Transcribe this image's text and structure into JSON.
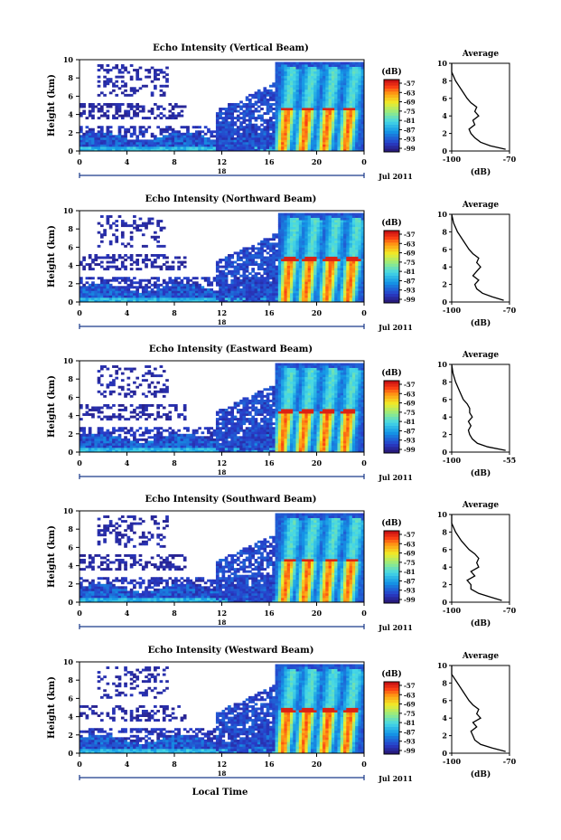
{
  "figure": {
    "xlabel": "Local Time",
    "date_label": "Jul 2011",
    "day_label": "18"
  },
  "chart_data": [
    {
      "type": "heatmap",
      "title": "Echo Intensity (Vertical Beam)",
      "ylabel": "Height (km)",
      "xlabel": "Local Time",
      "x_ticks": [
        "0",
        "4",
        "8",
        "12",
        "16",
        "20",
        "0"
      ],
      "x_range": [
        0,
        24
      ],
      "y_ticks": [
        "0",
        "2",
        "4",
        "6",
        "8",
        "10"
      ],
      "y_range": [
        0,
        10
      ],
      "colorbar_label": "(dB)",
      "colorbar_ticks": [
        "-57",
        "-63",
        "-69",
        "-75",
        "-81",
        "-87",
        "-93",
        "-99"
      ],
      "bright_band_height": 4.6,
      "rain_onset_hour": 16.5,
      "average": {
        "title": "Average",
        "xlabel": "(dB)",
        "x_range": [
          -100,
          -70
        ],
        "x_ticks": [
          "-100",
          "-70"
        ],
        "y_ticks": [
          "0",
          "2",
          "4",
          "6",
          "8",
          "10"
        ],
        "heights": [
          0.2,
          0.6,
          1.0,
          1.5,
          2.0,
          2.5,
          3.0,
          3.5,
          4.0,
          4.5,
          5.0,
          5.5,
          6.0,
          7.0,
          8.0,
          9.0,
          10.0
        ],
        "values": [
          -72,
          -80,
          -85,
          -88,
          -90,
          -91,
          -88,
          -89,
          -86,
          -88,
          -87,
          -90,
          -92,
          -95,
          -98,
          -100,
          -102
        ]
      }
    },
    {
      "type": "heatmap",
      "title": "Echo Intensity (Northward Beam)",
      "ylabel": "Height (km)",
      "xlabel": "Local Time",
      "x_ticks": [
        "0",
        "4",
        "8",
        "12",
        "16",
        "20",
        "0"
      ],
      "x_range": [
        0,
        24
      ],
      "y_ticks": [
        "0",
        "2",
        "4",
        "6",
        "8",
        "10"
      ],
      "y_range": [
        0,
        10
      ],
      "colorbar_label": "(dB)",
      "colorbar_ticks": [
        "-57",
        "-63",
        "-69",
        "-75",
        "-81",
        "-87",
        "-93",
        "-99"
      ],
      "bright_band_height": 4.8,
      "rain_onset_hour": 16.7,
      "average": {
        "title": "Average",
        "xlabel": "(dB)",
        "x_range": [
          -100,
          -70
        ],
        "x_ticks": [
          "-100",
          "-70"
        ],
        "y_ticks": [
          "0",
          "2",
          "4",
          "6",
          "8",
          "10"
        ],
        "heights": [
          0.2,
          0.6,
          1.0,
          1.5,
          2.0,
          2.5,
          3.0,
          3.5,
          4.0,
          4.5,
          5.0,
          5.5,
          6.0,
          7.0,
          8.0,
          9.0,
          10.0
        ],
        "values": [
          -73,
          -79,
          -84,
          -87,
          -88,
          -86,
          -89,
          -87,
          -85,
          -87,
          -86,
          -89,
          -91,
          -94,
          -97,
          -99,
          -101
        ]
      }
    },
    {
      "type": "heatmap",
      "title": "Echo Intensity (Eastward Beam)",
      "ylabel": "Height (km)",
      "xlabel": "Local Time",
      "x_ticks": [
        "0",
        "4",
        "8",
        "12",
        "16",
        "20",
        "0"
      ],
      "x_range": [
        0,
        24
      ],
      "y_ticks": [
        "0",
        "2",
        "4",
        "6",
        "8",
        "10"
      ],
      "y_range": [
        0,
        10
      ],
      "colorbar_label": "(dB)",
      "colorbar_ticks": [
        "-57",
        "-63",
        "-69",
        "-75",
        "-81",
        "-87",
        "-93",
        "-99"
      ],
      "bright_band_height": 4.5,
      "rain_onset_hour": 16.4,
      "average": {
        "title": "Average",
        "xlabel": "(dB)",
        "x_range": [
          -100,
          -55
        ],
        "x_ticks": [
          "-100",
          "-55"
        ],
        "y_ticks": [
          "0",
          "2",
          "4",
          "6",
          "8",
          "10"
        ],
        "heights": [
          0.2,
          0.6,
          1.0,
          1.5,
          2.0,
          2.5,
          3.0,
          3.5,
          4.0,
          4.5,
          5.0,
          5.5,
          6.0,
          7.0,
          8.0,
          9.0,
          10.0
        ],
        "values": [
          -58,
          -72,
          -80,
          -84,
          -86,
          -87,
          -85,
          -87,
          -84,
          -86,
          -86,
          -88,
          -91,
          -94,
          -97,
          -99,
          -101
        ]
      }
    },
    {
      "type": "heatmap",
      "title": "Echo Intensity (Southward Beam)",
      "ylabel": "Height (km)",
      "xlabel": "Local Time",
      "x_ticks": [
        "0",
        "4",
        "8",
        "12",
        "16",
        "20",
        "0"
      ],
      "x_range": [
        0,
        24
      ],
      "y_ticks": [
        "0",
        "2",
        "4",
        "6",
        "8",
        "10"
      ],
      "y_range": [
        0,
        10
      ],
      "colorbar_label": "(dB)",
      "colorbar_ticks": [
        "-57",
        "-63",
        "-69",
        "-75",
        "-81",
        "-87",
        "-93",
        "-99"
      ],
      "bright_band_height": 4.6,
      "rain_onset_hour": 16.6,
      "average": {
        "title": "Average",
        "xlabel": "(dB)",
        "x_range": [
          -100,
          -70
        ],
        "x_ticks": [
          "-100",
          "-70"
        ],
        "y_ticks": [
          "0",
          "2",
          "4",
          "6",
          "8",
          "10"
        ],
        "heights": [
          0.2,
          0.6,
          1.0,
          1.5,
          2.0,
          2.5,
          3.0,
          3.5,
          4.0,
          4.5,
          5.0,
          5.5,
          6.0,
          7.0,
          8.0,
          9.0,
          10.0
        ],
        "values": [
          -74,
          -80,
          -86,
          -90,
          -90,
          -92,
          -88,
          -90,
          -86,
          -87,
          -86,
          -88,
          -91,
          -95,
          -98,
          -100,
          -102
        ]
      }
    },
    {
      "type": "heatmap",
      "title": "Echo Intensity (Westward Beam)",
      "ylabel": "Height (km)",
      "xlabel": "Local Time",
      "x_ticks": [
        "0",
        "4",
        "8",
        "12",
        "16",
        "20",
        "0"
      ],
      "x_range": [
        0,
        24
      ],
      "y_ticks": [
        "0",
        "2",
        "4",
        "6",
        "8",
        "10"
      ],
      "y_range": [
        0,
        10
      ],
      "colorbar_label": "(dB)",
      "colorbar_ticks": [
        "-57",
        "-63",
        "-69",
        "-75",
        "-81",
        "-87",
        "-93",
        "-99"
      ],
      "bright_band_height": 4.7,
      "rain_onset_hour": 16.5,
      "average": {
        "title": "Average",
        "xlabel": "(dB)",
        "x_range": [
          -100,
          -70
        ],
        "x_ticks": [
          "-100",
          "-70"
        ],
        "y_ticks": [
          "0",
          "2",
          "4",
          "6",
          "8",
          "10"
        ],
        "heights": [
          0.2,
          0.6,
          1.0,
          1.5,
          2.0,
          2.5,
          3.0,
          3.5,
          4.0,
          4.5,
          5.0,
          5.5,
          6.0,
          7.0,
          8.0,
          9.0,
          10.0
        ],
        "values": [
          -72,
          -79,
          -85,
          -88,
          -89,
          -90,
          -87,
          -89,
          -85,
          -87,
          -86,
          -89,
          -91,
          -94,
          -97,
          -100,
          -102
        ]
      }
    }
  ]
}
